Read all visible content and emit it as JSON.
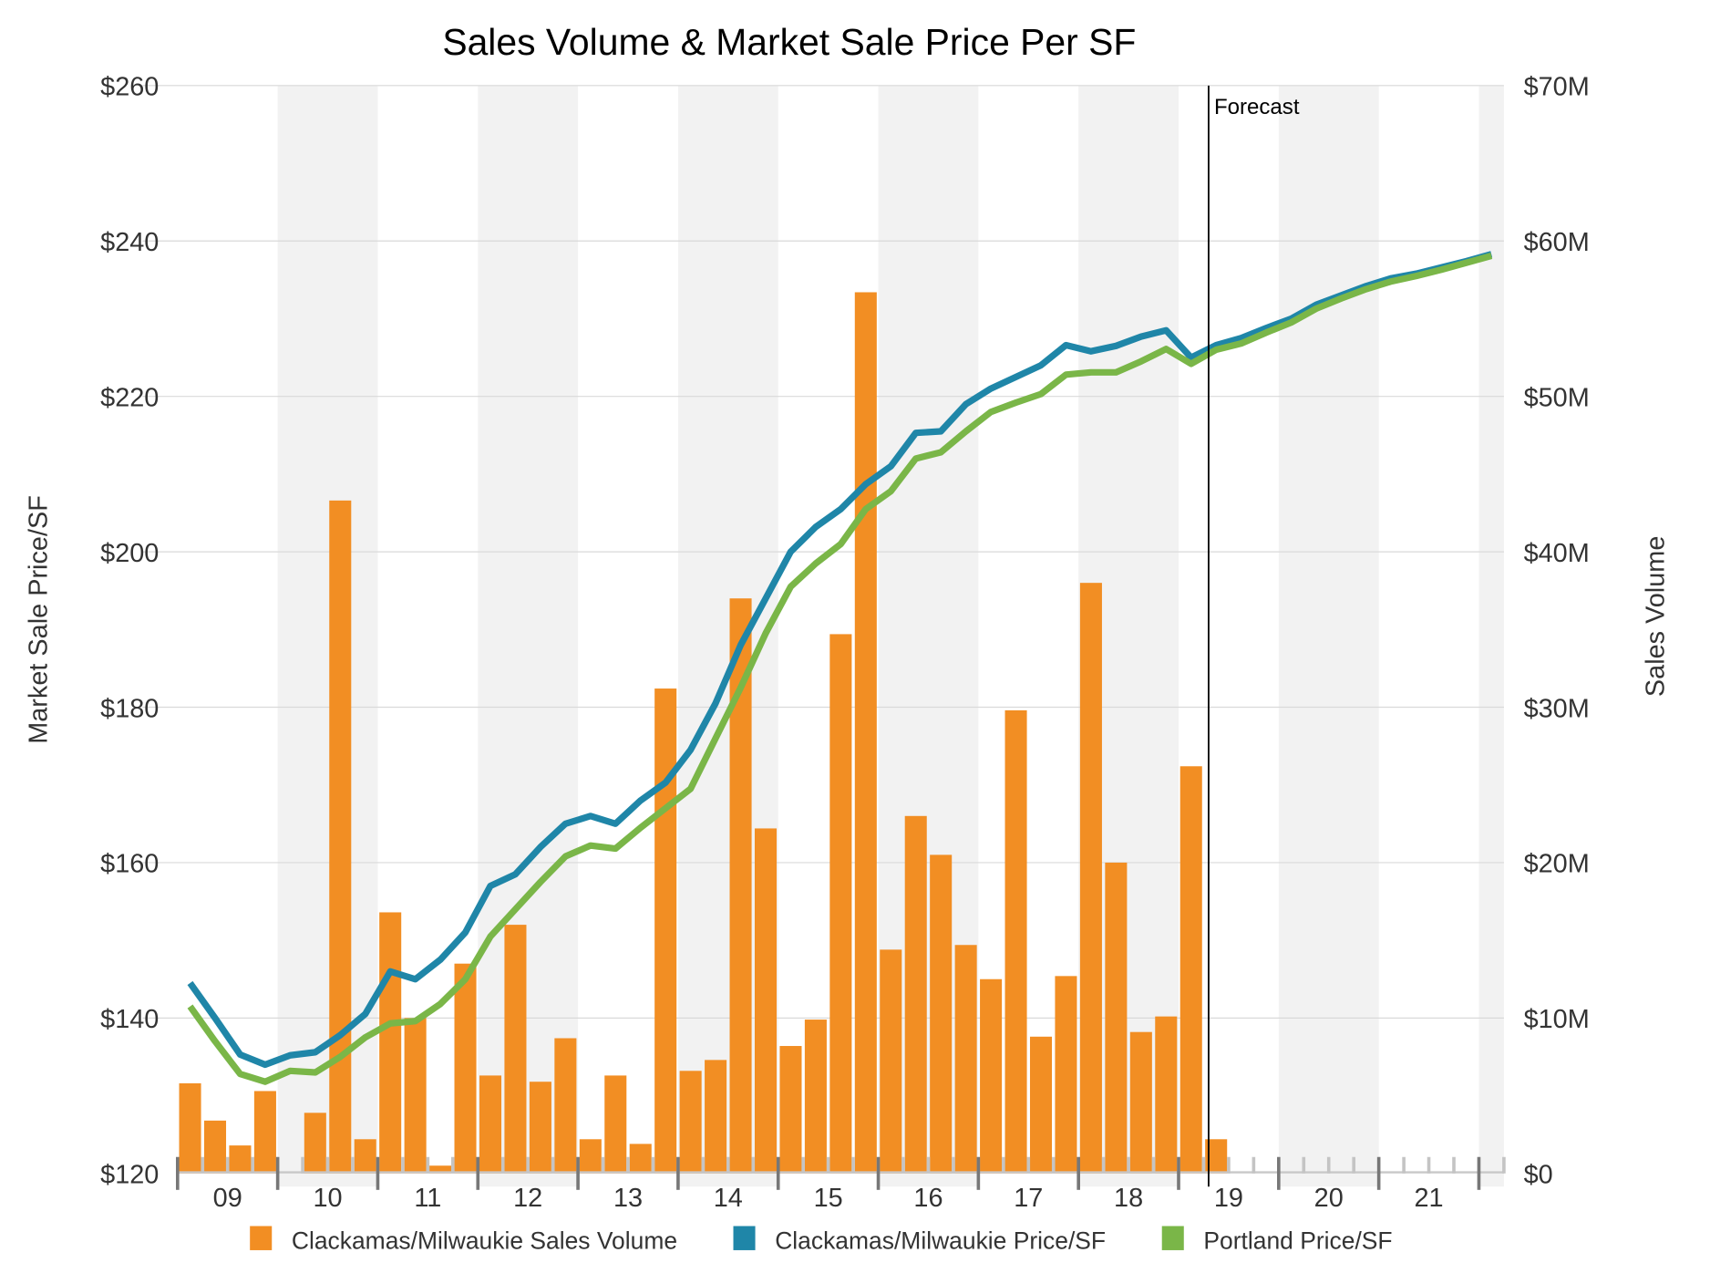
{
  "chart_data": {
    "type": "bar+line",
    "title": "Sales Volume & Market Sale Price Per SF",
    "ylabel_left": "Market Sale Price/SF",
    "ylabel_right": "Sales Volume",
    "ylim_left": [
      120,
      260
    ],
    "ylim_right": [
      0,
      70
    ],
    "yticks_left": [
      "$120",
      "$140",
      "$160",
      "$180",
      "$200",
      "$220",
      "$240",
      "$260"
    ],
    "yticks_right": [
      "$0",
      "$10M",
      "$20M",
      "$30M",
      "$40M",
      "$50M",
      "$60M",
      "$70M"
    ],
    "x_year_labels": [
      "09",
      "10",
      "11",
      "12",
      "13",
      "14",
      "15",
      "16",
      "17",
      "18",
      "19",
      "20",
      "21"
    ],
    "x_unit": "quarter, starting 2009 Q1",
    "forecast_label": "Forecast",
    "forecast_start_quarter_index": 41.2,
    "grid": true,
    "legend_position": "bottom",
    "legend": [
      "Clackamas/Milwaukie Sales Volume",
      "Clackamas/Milwaukie Price/SF",
      "Portland Price/SF"
    ],
    "colors": {
      "volume": "#f28e23",
      "clackamas_price": "#1f86a8",
      "portland_price": "#7ab648",
      "band": "#f2f2f2",
      "grid": "#d9d9d9"
    },
    "series": [
      {
        "name": "Clackamas/Milwaukie Sales Volume",
        "axis": "right",
        "unit": "$M",
        "values": [
          5.8,
          3.4,
          1.8,
          5.3,
          0,
          3.9,
          43.3,
          2.2,
          16.8,
          10,
          0.5,
          13.5,
          6.3,
          16,
          5.9,
          8.7,
          2.2,
          6.3,
          1.9,
          31.2,
          6.6,
          7.3,
          37,
          22.2,
          8.2,
          9.9,
          34.7,
          56.7,
          14.4,
          23,
          20.5,
          14.7,
          12.5,
          29.8,
          8.8,
          12.7,
          38,
          20,
          9.1,
          10.1,
          26.2,
          2.2
        ]
      },
      {
        "name": "Clackamas/Milwaukie Price/SF",
        "axis": "left",
        "values": [
          144.5,
          140,
          135.3,
          134,
          135.2,
          135.6,
          137.8,
          140.5,
          146,
          145,
          147.5,
          151,
          157,
          158.5,
          162,
          165,
          166,
          165,
          168,
          170.3,
          174.5,
          180.5,
          188,
          194,
          200,
          203.2,
          205.5,
          208.7,
          211,
          215.3,
          215.5,
          219,
          221,
          222.5,
          224,
          226.6,
          225.8,
          226.5,
          227.7,
          228.5,
          225,
          226.6,
          227.5,
          228.8,
          230,
          231.8,
          233,
          234.2,
          235.2,
          235.8,
          236.6,
          237.4,
          238.3
        ]
      },
      {
        "name": "Portland Price/SF",
        "axis": "left",
        "values": [
          141.5,
          137,
          132.8,
          131.8,
          133.2,
          133,
          135,
          137.5,
          139.3,
          139.6,
          141.8,
          145,
          150.5,
          154,
          157.5,
          160.8,
          162.2,
          161.8,
          164.5,
          167,
          169.5,
          176,
          182.5,
          189.5,
          195.5,
          198.5,
          201,
          205.5,
          207.8,
          212,
          212.8,
          215.5,
          218,
          219.2,
          220.3,
          222.8,
          223.1,
          223.1,
          224.5,
          226.1,
          224.2,
          226,
          226.8,
          228.2,
          229.5,
          231.3,
          232.6,
          233.8,
          234.8,
          235.5,
          236.3,
          237.2,
          238.1
        ]
      }
    ]
  }
}
